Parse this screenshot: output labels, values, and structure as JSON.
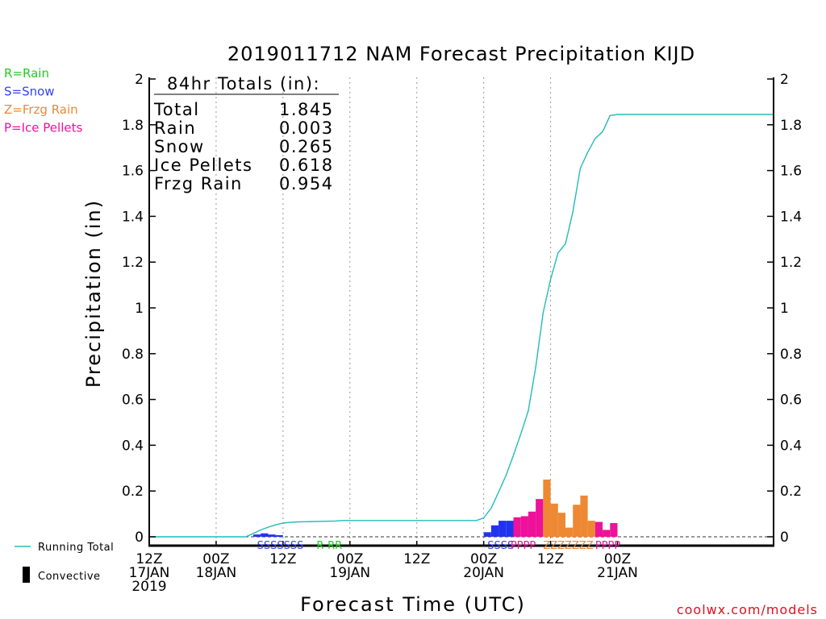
{
  "chart_data": {
    "type": "bar",
    "title": "2019011712 NAM Forecast Precipitation KIJD",
    "xlabel": "Forecast Time (UTC)",
    "ylabel": "Precipitation (in)",
    "ylim": [
      0,
      2
    ],
    "xlim_hours": [
      0,
      84
    ],
    "y_ticks": [
      "0",
      "0.2",
      "0.4",
      "0.6",
      "0.8",
      "1",
      "1.2",
      "1.4",
      "1.6",
      "1.8",
      "2"
    ],
    "x_ticks": [
      {
        "hour": 0,
        "lines": [
          "12Z",
          "17JAN",
          "2019"
        ]
      },
      {
        "hour": 9,
        "lines": [
          "00Z",
          "18JAN"
        ]
      },
      {
        "hour": 18,
        "lines": [
          "12Z"
        ]
      },
      {
        "hour": 27,
        "lines": [
          "00Z",
          "19JAN"
        ]
      },
      {
        "hour": 36,
        "lines": [
          "12Z"
        ]
      },
      {
        "hour": 45,
        "lines": [
          "00Z",
          "20JAN"
        ]
      },
      {
        "hour": 54,
        "lines": [
          "12Z"
        ]
      },
      {
        "hour": 63,
        "lines": [
          "00Z",
          "21JAN"
        ]
      }
    ],
    "grid_hours": [
      9,
      18,
      27,
      36,
      45,
      54
    ],
    "precip_type_legend": [
      {
        "label": "R=Rain",
        "color": "#22cc22"
      },
      {
        "label": "S=Snow",
        "color": "#3344ee"
      },
      {
        "label": "Z=Frzg Rain",
        "color": "#ee8833"
      },
      {
        "label": "P=Ice Pellets",
        "color": "#ee1199"
      }
    ],
    "totals_box": {
      "heading": "84hr Totals (in):",
      "rows": [
        {
          "label": "Total",
          "value": "1.845"
        },
        {
          "label": "Rain",
          "value": "0.003"
        },
        {
          "label": "Snow",
          "value": "0.265"
        },
        {
          "label": "Ice Pellets",
          "value": "0.618"
        },
        {
          "label": "Frzg Rain",
          "value": "0.954"
        }
      ]
    },
    "bar_colors": {
      "S": "#2233ee",
      "P": "#ee1199",
      "Z": "#ee8833",
      "R": "#22cc22"
    },
    "bars": [
      {
        "start": 14,
        "end": 15,
        "type": "S",
        "value": 0.01
      },
      {
        "start": 15,
        "end": 16,
        "type": "S",
        "value": 0.015
      },
      {
        "start": 16,
        "end": 17,
        "type": "S",
        "value": 0.01
      },
      {
        "start": 17,
        "end": 18,
        "type": "S",
        "value": 0.007
      },
      {
        "start": 45,
        "end": 46,
        "type": "S",
        "value": 0.02
      },
      {
        "start": 46,
        "end": 47,
        "type": "S",
        "value": 0.05
      },
      {
        "start": 47,
        "end": 48,
        "type": "S",
        "value": 0.07
      },
      {
        "start": 48,
        "end": 49,
        "type": "S",
        "value": 0.07
      },
      {
        "start": 49,
        "end": 50,
        "type": "P",
        "value": 0.085
      },
      {
        "start": 50,
        "end": 51,
        "type": "P",
        "value": 0.09
      },
      {
        "start": 51,
        "end": 52,
        "type": "P",
        "value": 0.11
      },
      {
        "start": 52,
        "end": 53,
        "type": "P",
        "value": 0.165
      },
      {
        "start": 53,
        "end": 54,
        "type": "Z",
        "value": 0.25
      },
      {
        "start": 54,
        "end": 55,
        "type": "Z",
        "value": 0.145
      },
      {
        "start": 55,
        "end": 56,
        "type": "Z",
        "value": 0.105
      },
      {
        "start": 56,
        "end": 57,
        "type": "Z",
        "value": 0.04
      },
      {
        "start": 57,
        "end": 58,
        "type": "Z",
        "value": 0.14
      },
      {
        "start": 58,
        "end": 59,
        "type": "Z",
        "value": 0.18
      },
      {
        "start": 59,
        "end": 60,
        "type": "Z",
        "value": 0.07
      },
      {
        "start": 60,
        "end": 61,
        "type": "P",
        "value": 0.065
      },
      {
        "start": 61,
        "end": 62,
        "type": "P",
        "value": 0.03
      },
      {
        "start": 62,
        "end": 63,
        "type": "P",
        "value": 0.06
      }
    ],
    "type_strip": [
      {
        "hour": 14.5,
        "text": "SSSSSSS",
        "color": "#3344ee"
      },
      {
        "hour": 22.5,
        "text": "R",
        "color": "#22cc22"
      },
      {
        "hour": 24,
        "text": "RR",
        "color": "#22cc22"
      },
      {
        "hour": 45.5,
        "text": "SSSS",
        "color": "#3344ee"
      },
      {
        "hour": 48.6,
        "text": "PPPP",
        "color": "#ee1199"
      },
      {
        "hour": 53,
        "text": "ZZZZZZZ",
        "color": "#ee8833"
      },
      {
        "hour": 60,
        "text": "PPPP",
        "color": "#ee1199"
      }
    ],
    "series": [
      {
        "name": "Running Total",
        "color": "#22bbbb",
        "x": [
          0,
          13,
          14,
          15,
          16,
          17,
          18,
          19,
          20,
          21,
          25,
          26,
          44,
          45,
          46,
          47,
          48,
          49,
          50,
          51,
          52,
          53,
          54,
          55,
          56,
          57,
          58,
          59,
          60,
          61,
          62,
          63,
          64,
          84
        ],
        "y": [
          0,
          0,
          0.015,
          0.03,
          0.042,
          0.052,
          0.06,
          0.063,
          0.065,
          0.066,
          0.069,
          0.071,
          0.071,
          0.082,
          0.125,
          0.195,
          0.268,
          0.356,
          0.45,
          0.55,
          0.74,
          0.98,
          1.125,
          1.24,
          1.28,
          1.42,
          1.61,
          1.68,
          1.74,
          1.77,
          1.84,
          1.845,
          1.845,
          1.845
        ]
      }
    ],
    "line_legend": [
      {
        "label": "Running Total",
        "kind": "line",
        "color": "#22bbbb"
      },
      {
        "label": "Convective",
        "kind": "bar",
        "color": "#000000"
      }
    ],
    "credit": "coolwx.com/models"
  }
}
